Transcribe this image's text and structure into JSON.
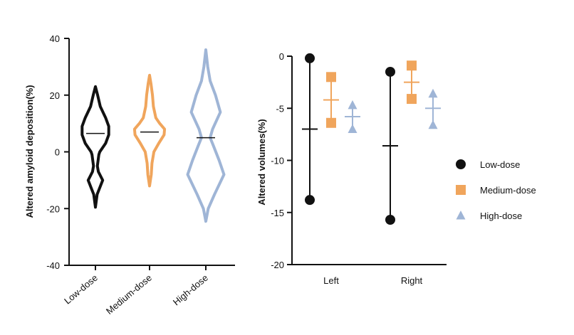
{
  "colors": {
    "low": "#111111",
    "medium": "#f0a55c",
    "high": "#9fb5d6",
    "axis": "#111111"
  },
  "chart_data": [
    {
      "type": "violin",
      "title": "",
      "xlabel": "",
      "ylabel": "Altered amyloid deposition(%)",
      "ylim": [
        -40,
        40
      ],
      "yticks": [
        "40",
        "20",
        "0",
        "-20",
        "-40"
      ],
      "ytick_values": [
        40,
        20,
        0,
        -20,
        -40
      ],
      "categories": [
        "Low-dose",
        "Medium-dose",
        "High-dose"
      ],
      "series": [
        {
          "name": "Low-dose",
          "color_key": "low",
          "median": 6.5,
          "range": [
            -19.5,
            23
          ],
          "profile": [
            [
              -19.5,
              0.0
            ],
            [
              -15,
              0.07
            ],
            [
              -10,
              0.3
            ],
            [
              -7,
              0.12
            ],
            [
              -5,
              0.08
            ],
            [
              -1,
              0.14
            ],
            [
              0,
              0.18
            ],
            [
              3,
              0.42
            ],
            [
              6,
              0.55
            ],
            [
              9,
              0.55
            ],
            [
              12,
              0.42
            ],
            [
              16,
              0.2
            ],
            [
              20,
              0.09
            ],
            [
              23,
              0.0
            ]
          ]
        },
        {
          "name": "Medium-dose",
          "color_key": "medium",
          "median": 7,
          "range": [
            -12,
            27
          ],
          "profile": [
            [
              -12,
              0.0
            ],
            [
              -8,
              0.07
            ],
            [
              -4,
              0.1
            ],
            [
              0,
              0.18
            ],
            [
              3,
              0.38
            ],
            [
              6,
              0.6
            ],
            [
              8,
              0.62
            ],
            [
              10,
              0.42
            ],
            [
              12,
              0.26
            ],
            [
              16,
              0.16
            ],
            [
              20,
              0.12
            ],
            [
              24,
              0.06
            ],
            [
              27,
              0.0
            ]
          ]
        },
        {
          "name": "High-dose",
          "color_key": "high",
          "median": 5,
          "range": [
            -24.5,
            36
          ],
          "profile": [
            [
              -24.5,
              0.0
            ],
            [
              -20,
              0.1
            ],
            [
              -15,
              0.36
            ],
            [
              -8,
              0.75
            ],
            [
              -3,
              0.55
            ],
            [
              2,
              0.32
            ],
            [
              5,
              0.18
            ],
            [
              8,
              0.28
            ],
            [
              14,
              0.6
            ],
            [
              20,
              0.4
            ],
            [
              25,
              0.18
            ],
            [
              30,
              0.08
            ],
            [
              36,
              0.0
            ]
          ]
        }
      ]
    },
    {
      "type": "scatter",
      "title": "",
      "xlabel": "",
      "ylabel": "Altered volumes(%)",
      "ylim": [
        -20,
        0
      ],
      "yticks": [
        "0",
        "-5",
        "-10",
        "-15",
        "-20"
      ],
      "ytick_values": [
        0,
        -5,
        -10,
        -15,
        -20
      ],
      "categories": [
        "Left",
        "Right"
      ],
      "series": [
        {
          "name": "Low-dose",
          "color_key": "low",
          "marker": "circle",
          "points": [
            [
              -0.2,
              -13.8
            ],
            [
              -1.5,
              -15.7
            ]
          ],
          "means": [
            -7,
            -8.6
          ]
        },
        {
          "name": "Medium-dose",
          "color_key": "medium",
          "marker": "square",
          "points": [
            [
              -2.0,
              -6.4
            ],
            [
              -0.9,
              -4.1
            ]
          ],
          "means": [
            -4.2,
            -2.5
          ]
        },
        {
          "name": "High-dose",
          "color_key": "high",
          "marker": "triangle",
          "points": [
            [
              -4.7,
              -7.0
            ],
            [
              -3.6,
              -6.6
            ]
          ],
          "means": [
            -5.8,
            -5.0
          ]
        }
      ],
      "legend": [
        "Low-dose",
        "Medium-dose",
        "High-dose"
      ],
      "legend_position": "right"
    }
  ]
}
